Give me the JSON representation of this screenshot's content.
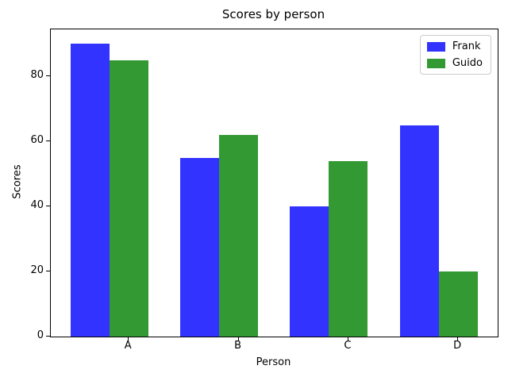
{
  "chart_data": {
    "type": "bar",
    "title": "Scores by person",
    "xlabel": "Person",
    "ylabel": "Scores",
    "categories": [
      "A",
      "B",
      "C",
      "D"
    ],
    "series": [
      {
        "name": "Frank",
        "color": "#3333ff",
        "values": [
          90,
          55,
          40,
          65
        ]
      },
      {
        "name": "Guido",
        "color": "#339933",
        "values": [
          85,
          62,
          54,
          20
        ]
      }
    ],
    "yticks": [
      0,
      20,
      40,
      60,
      80
    ],
    "ylim": [
      0,
      94.5
    ],
    "grid": false,
    "legend_position": "upper right",
    "background_color": "#ffffff",
    "spine_color": "#000000"
  }
}
